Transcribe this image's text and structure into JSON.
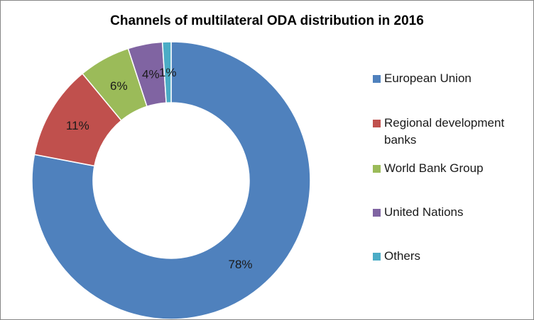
{
  "chart_data": {
    "type": "pie",
    "subtype": "donut",
    "title": "Channels of multilateral ODA distribution in 2016",
    "categories": [
      "European Union",
      "Regional development banks",
      "World Bank Group",
      "United Nations",
      "Others"
    ],
    "values": [
      78,
      11,
      6,
      4,
      1
    ],
    "labels": [
      "78%",
      "11%",
      "6%",
      "4%",
      "1%"
    ],
    "unit": "%",
    "colors": [
      "#4F81BD",
      "#C0504D",
      "#9BBB59",
      "#8064A2",
      "#4BACC6"
    ],
    "legend_position": "right"
  }
}
